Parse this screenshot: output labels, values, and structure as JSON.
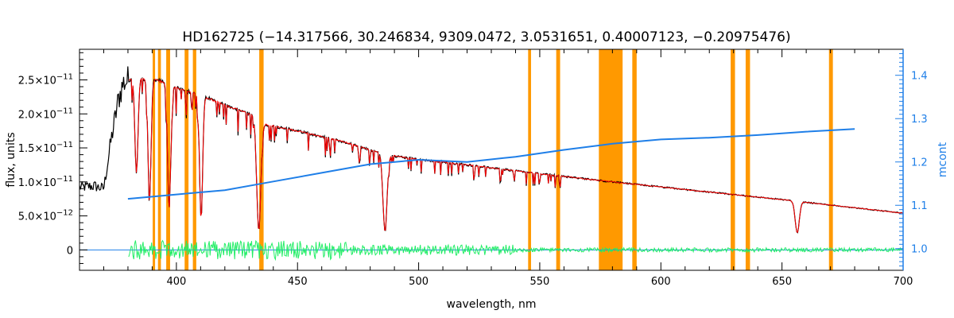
{
  "chart_data": {
    "type": "line",
    "title": "HD162725    (−14.317566, 30.246834, 9309.0472, 3.0531651, 0.40007123, −0.20975476)",
    "xlabel": "wavelength, nm",
    "ylabel": "flux, units",
    "y2label": "mcont",
    "xlim": [
      360,
      700
    ],
    "ylim": [
      -3e-12,
      2.95e-11
    ],
    "y2lim": [
      0.95,
      1.46
    ],
    "grid": false,
    "x_ticks": [
      400,
      450,
      500,
      550,
      600,
      650,
      700
    ],
    "x_tick_labels": [
      "400",
      "450",
      "500",
      "550",
      "600",
      "650",
      "700"
    ],
    "y_ticks": [
      0,
      5e-12,
      1e-11,
      1.5e-11,
      2e-11,
      2.5e-11
    ],
    "y_tick_labels": [
      {
        "mant": "0",
        "exp": ""
      },
      {
        "mant": "5.0×10",
        "exp": "−12"
      },
      {
        "mant": "1.0×10",
        "exp": "−11"
      },
      {
        "mant": "1.5×10",
        "exp": "−11"
      },
      {
        "mant": "2.0×10",
        "exp": "−11"
      },
      {
        "mant": "2.5×10",
        "exp": "−11"
      }
    ],
    "y2_ticks": [
      1.0,
      1.1,
      1.2,
      1.3,
      1.4
    ],
    "y2_tick_labels": [
      "1.0",
      "1.1",
      "1.2",
      "1.3",
      "1.4"
    ],
    "masked_regions": [
      [
        390.2,
        391.2
      ],
      [
        392.4,
        393.6
      ],
      [
        395.8,
        397.4
      ],
      [
        403.4,
        405.0
      ],
      [
        406.8,
        408.2
      ],
      [
        434.2,
        436.0
      ],
      [
        545.2,
        546.4
      ],
      [
        556.8,
        558.4
      ],
      [
        574.4,
        584.2
      ],
      [
        588.2,
        590.0
      ],
      [
        628.8,
        630.6
      ],
      [
        635.0,
        636.8
      ],
      [
        669.4,
        671.0
      ]
    ],
    "hydrogen_lines": [
      {
        "x": 383.5,
        "depth": 0.55
      },
      {
        "x": 388.9,
        "depth": 0.7
      },
      {
        "x": 397.0,
        "depth": 0.75
      },
      {
        "x": 410.2,
        "depth": 0.8
      },
      {
        "x": 434.0,
        "depth": 0.85
      },
      {
        "x": 486.1,
        "depth": 0.8
      },
      {
        "x": 656.3,
        "depth": 0.65
      }
    ],
    "continuum_points": [
      [
        360,
        9.2e-12
      ],
      [
        366,
        9.4e-12
      ],
      [
        370,
        9e-12
      ],
      [
        373,
        1.6e-11
      ],
      [
        376,
        2.2e-11
      ],
      [
        378,
        2.45e-11
      ],
      [
        380,
        2.5e-11
      ],
      [
        385,
        2.52e-11
      ],
      [
        392,
        2.5e-11
      ],
      [
        400,
        2.38e-11
      ],
      [
        410,
        2.28e-11
      ],
      [
        420,
        2.13e-11
      ],
      [
        434,
        1.95e-11
      ],
      [
        436,
        1.85e-11
      ],
      [
        450,
        1.75e-11
      ],
      [
        470,
        1.58e-11
      ],
      [
        480,
        1.47e-11
      ],
      [
        490,
        1.38e-11
      ],
      [
        500,
        1.33e-11
      ],
      [
        520,
        1.25e-11
      ],
      [
        550,
        1.12e-11
      ],
      [
        580,
        1e-11
      ],
      [
        620,
        8.5e-12
      ],
      [
        650,
        7.4e-12
      ],
      [
        680,
        6.2e-12
      ],
      [
        700,
        5.4e-12
      ]
    ],
    "mcont_points": [
      [
        380,
        1.115
      ],
      [
        400,
        1.125
      ],
      [
        420,
        1.135
      ],
      [
        440,
        1.155
      ],
      [
        460,
        1.175
      ],
      [
        480,
        1.195
      ],
      [
        500,
        1.205
      ],
      [
        520,
        1.2
      ],
      [
        540,
        1.212
      ],
      [
        560,
        1.228
      ],
      [
        580,
        1.242
      ],
      [
        600,
        1.252
      ],
      [
        620,
        1.256
      ],
      [
        640,
        1.262
      ],
      [
        660,
        1.27
      ],
      [
        680,
        1.276
      ]
    ],
    "series": [
      {
        "name": "observed",
        "color": "#000000"
      },
      {
        "name": "model",
        "color": "#ff0000"
      },
      {
        "name": "mcont",
        "color": "#1f7fe8"
      },
      {
        "name": "residual",
        "color": "#22ee66"
      },
      {
        "name": "mask",
        "color": "#ff9900"
      }
    ]
  }
}
